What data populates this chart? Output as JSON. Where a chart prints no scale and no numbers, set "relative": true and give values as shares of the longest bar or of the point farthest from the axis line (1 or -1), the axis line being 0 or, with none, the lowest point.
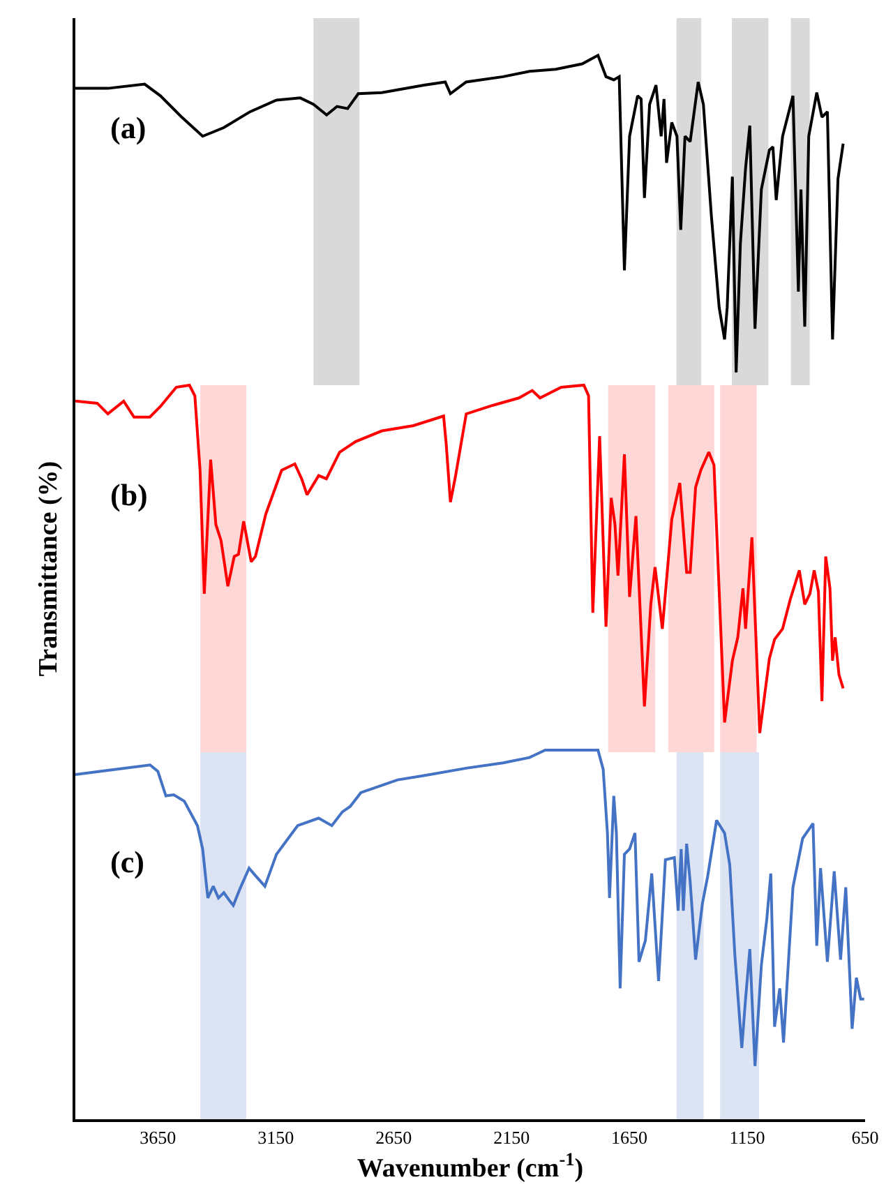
{
  "chart_data": {
    "type": "line",
    "relative": true,
    "xlabel": "Wavenumber (cm$^{-1}$)",
    "ylabel": "Transmittance (%)",
    "xlim": [
      4000,
      650
    ],
    "xticks": [
      3650,
      3150,
      2650,
      2150,
      1650,
      1150,
      650
    ],
    "tick_labels": "x",
    "legend": false,
    "grid": false,
    "series": [
      {
        "name": "(a)",
        "color": "#000000",
        "x": [
          4000,
          3862,
          3706,
          3639,
          3549,
          3460,
          3371,
          3259,
          3147,
          3046,
          2990,
          2934,
          2890,
          2845,
          2800,
          2700,
          2521,
          2431,
          2409,
          2342,
          2185,
          2074,
          1962,
          1850,
          1783,
          1749,
          1716,
          1693,
          1671,
          1649,
          1615,
          1600,
          1586,
          1564,
          1537,
          1515,
          1503,
          1492,
          1470,
          1448,
          1432,
          1414,
          1392,
          1358,
          1336,
          1302,
          1269,
          1246,
          1235,
          1213,
          1197,
          1179,
          1157,
          1139,
          1117,
          1090,
          1056,
          1041,
          1027,
          1000,
          956,
          933,
          922,
          906,
          889,
          855,
          833,
          810,
          788,
          765,
          743
        ],
        "values": [
          0.969,
          0.969,
          0.973,
          0.962,
          0.942,
          0.924,
          0.932,
          0.947,
          0.958,
          0.96,
          0.954,
          0.944,
          0.952,
          0.95,
          0.964,
          0.965,
          0.972,
          0.975,
          0.964,
          0.975,
          0.98,
          0.985,
          0.987,
          0.992,
          1,
          0.98,
          0.977,
          0.98,
          0.798,
          0.924,
          0.962,
          0.959,
          0.866,
          0.954,
          0.972,
          0.924,
          0.959,
          0.899,
          0.937,
          0.924,
          0.836,
          0.924,
          0.919,
          0.975,
          0.954,
          0.849,
          0.763,
          0.733,
          0.763,
          0.886,
          0.702,
          0.823,
          0.894,
          0.934,
          0.743,
          0.874,
          0.911,
          0.914,
          0.864,
          0.924,
          0.962,
          0.778,
          0.874,
          0.745,
          0.924,
          0.965,
          0.942,
          0.947,
          0.733,
          0.884,
          0.917
        ]
      },
      {
        "name": "(b)",
        "color": "#ff0000",
        "x": [
          4000,
          3907,
          3862,
          3795,
          3751,
          3684,
          3639,
          3572,
          3516,
          3493,
          3471,
          3453,
          3426,
          3404,
          3382,
          3353,
          3326,
          3308,
          3286,
          3254,
          3236,
          3192,
          3125,
          3069,
          3040,
          3017,
          2968,
          2935,
          2879,
          2811,
          2700,
          2566,
          2438,
          2427,
          2409,
          2387,
          2342,
          2230,
          2118,
          2062,
          2029,
          1939,
          1843,
          1823,
          1805,
          1776,
          1749,
          1727,
          1711,
          1698,
          1671,
          1649,
          1622,
          1586,
          1559,
          1541,
          1510,
          1470,
          1436,
          1407,
          1392,
          1369,
          1347,
          1313,
          1291,
          1246,
          1213,
          1190,
          1168,
          1157,
          1130,
          1097,
          1056,
          1034,
          1000,
          967,
          929,
          906,
          884,
          866,
          848,
          833,
          817,
          799,
          788,
          777,
          761,
          743
        ],
        "values": [
          0.675,
          0.673,
          0.663,
          0.675,
          0.66,
          0.66,
          0.67,
          0.688,
          0.69,
          0.68,
          0.61,
          0.494,
          0.62,
          0.559,
          0.544,
          0.501,
          0.529,
          0.531,
          0.562,
          0.524,
          0.529,
          0.569,
          0.61,
          0.616,
          0.602,
          0.587,
          0.605,
          0.602,
          0.627,
          0.637,
          0.647,
          0.652,
          0.661,
          0.635,
          0.58,
          0.605,
          0.663,
          0.671,
          0.678,
          0.685,
          0.678,
          0.688,
          0.69,
          0.68,
          0.476,
          0.642,
          0.463,
          0.584,
          0.559,
          0.511,
          0.625,
          0.491,
          0.567,
          0.388,
          0.484,
          0.519,
          0.461,
          0.564,
          0.598,
          0.514,
          0.514,
          0.594,
          0.61,
          0.627,
          0.615,
          0.373,
          0.431,
          0.453,
          0.499,
          0.461,
          0.547,
          0.363,
          0.433,
          0.451,
          0.461,
          0.489,
          0.516,
          0.484,
          0.494,
          0.516,
          0.496,
          0.393,
          0.529,
          0.499,
          0.431,
          0.453,
          0.418,
          0.405
        ]
      },
      {
        "name": "(c)",
        "color": "#4472c4",
        "x": [
          4000,
          3862,
          3683,
          3650,
          3616,
          3583,
          3538,
          3482,
          3460,
          3438,
          3415,
          3393,
          3370,
          3348,
          3330,
          3303,
          3263,
          3236,
          3196,
          3147,
          3057,
          2968,
          2912,
          2867,
          2834,
          2789,
          2633,
          2521,
          2342,
          2185,
          2074,
          2007,
          1850,
          1783,
          1761,
          1743,
          1734,
          1716,
          1705,
          1689,
          1671,
          1649,
          1626,
          1609,
          1582,
          1555,
          1526,
          1497,
          1459,
          1443,
          1430,
          1421,
          1407,
          1392,
          1369,
          1340,
          1318,
          1280,
          1246,
          1224,
          1202,
          1173,
          1157,
          1139,
          1117,
          1090,
          1067,
          1050,
          1034,
          1012,
          996,
          956,
          915,
          871,
          855,
          839,
          810,
          781,
          754,
          732,
          705,
          687,
          669,
          654
        ],
        "values": [
          0.324,
          0.328,
          0.333,
          0.327,
          0.304,
          0.305,
          0.299,
          0.276,
          0.254,
          0.208,
          0.219,
          0.208,
          0.213,
          0.206,
          0.201,
          0.216,
          0.236,
          0.229,
          0.219,
          0.249,
          0.276,
          0.283,
          0.276,
          0.289,
          0.294,
          0.307,
          0.319,
          0.323,
          0.33,
          0.335,
          0.34,
          0.347,
          0.347,
          0.347,
          0.329,
          0.269,
          0.208,
          0.304,
          0.269,
          0.123,
          0.249,
          0.254,
          0.269,
          0.148,
          0.168,
          0.231,
          0.13,
          0.244,
          0.246,
          0.196,
          0.254,
          0.196,
          0.259,
          0.223,
          0.15,
          0.203,
          0.228,
          0.281,
          0.269,
          0.239,
          0.153,
          0.067,
          0.113,
          0.16,
          0.05,
          0.145,
          0.188,
          0.231,
          0.087,
          0.123,
          0.072,
          0.218,
          0.264,
          0.278,
          0.163,
          0.236,
          0.148,
          0.233,
          0.15,
          0.218,
          0.085,
          0.133,
          0.113,
          0.113
        ]
      }
    ],
    "bands": [
      {
        "axis": "x",
        "from": 2990,
        "to": 2795,
        "color": "#d9d9d9"
      },
      {
        "axis": "x",
        "from": 1450,
        "to": 1345,
        "color": "#d9d9d9"
      },
      {
        "axis": "x",
        "from": 1215,
        "to": 1060,
        "color": "#d9d9d9"
      },
      {
        "axis": "x",
        "from": 965,
        "to": 885,
        "color": "#d9d9d9"
      },
      {
        "axis": "x",
        "from": 3470,
        "to": 3275,
        "color": "#ffd7d7"
      },
      {
        "axis": "x",
        "from": 1740,
        "to": 1540,
        "color": "#ffd7d7"
      },
      {
        "axis": "x",
        "from": 1485,
        "to": 1290,
        "color": "#ffd7d7"
      },
      {
        "axis": "x",
        "from": 1265,
        "to": 1110,
        "color": "#ffd7d7"
      },
      {
        "axis": "x",
        "from": 3470,
        "to": 3275,
        "color": "#dce4f4"
      },
      {
        "axis": "x",
        "from": 1450,
        "to": 1335,
        "color": "#dce4f4"
      },
      {
        "axis": "x",
        "from": 1265,
        "to": 1100,
        "color": "#dce4f4"
      }
    ]
  }
}
